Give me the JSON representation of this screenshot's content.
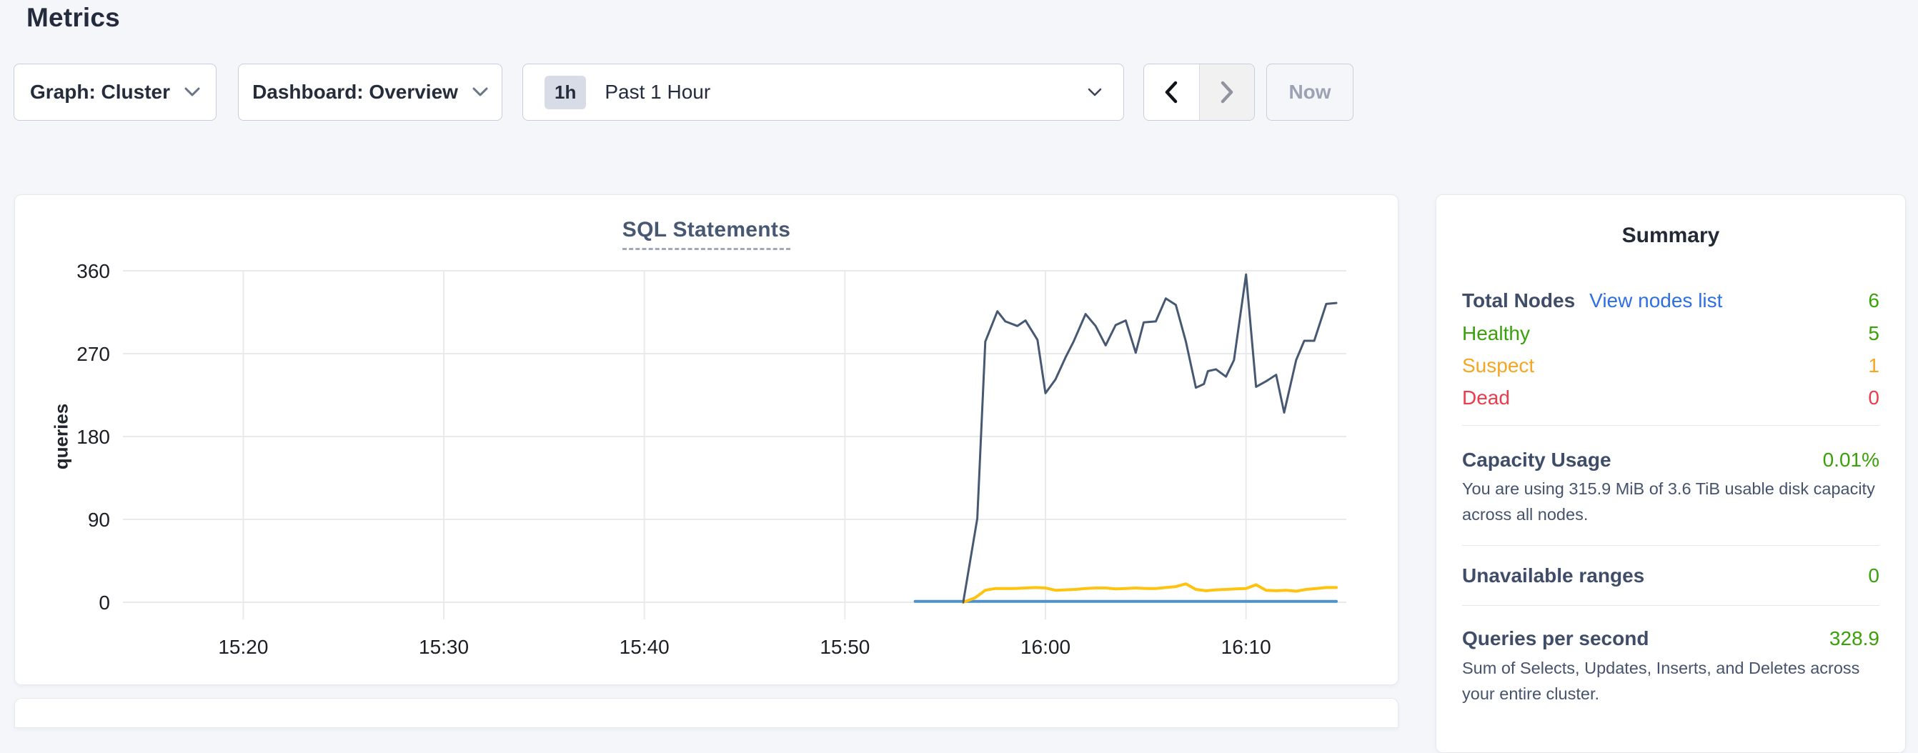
{
  "page": {
    "title": "Metrics"
  },
  "toolbar": {
    "graph_dropdown_label": "Graph: Cluster",
    "dashboard_dropdown_label": "Dashboard: Overview",
    "time_badge": "1h",
    "time_label": "Past 1 Hour",
    "now_label": "Now"
  },
  "chart_data": {
    "type": "line",
    "title": "SQL Statements",
    "ylabel": "queries",
    "xlabel": "",
    "grid": true,
    "legend_position": "none",
    "x_axis_unit": "minutes after 15:00",
    "x_domain": [
      14,
      75
    ],
    "y_domain": [
      0,
      360
    ],
    "y_ticks": [
      0,
      90,
      180,
      270,
      360
    ],
    "x_ticks": [
      {
        "m": 20,
        "label": "15:20"
      },
      {
        "m": 30,
        "label": "15:30"
      },
      {
        "m": 40,
        "label": "15:40"
      },
      {
        "m": 50,
        "label": "15:50"
      },
      {
        "m": 60,
        "label": "16:00"
      },
      {
        "m": 70,
        "label": "16:10"
      }
    ],
    "series": [
      {
        "name": "flat-baseline-series",
        "color": "#4e91cb",
        "width": 4,
        "points": [
          [
            53.5,
            1
          ],
          [
            74.5,
            1
          ]
        ]
      },
      {
        "name": "low-volume-series",
        "color": "#ffc20e",
        "width": 4,
        "points": [
          [
            55.9,
            0
          ],
          [
            56.5,
            5
          ],
          [
            57,
            13
          ],
          [
            57.5,
            15
          ],
          [
            58,
            15
          ],
          [
            58.5,
            15
          ],
          [
            59,
            15.5
          ],
          [
            59.5,
            16
          ],
          [
            60,
            15.5
          ],
          [
            60.5,
            13
          ],
          [
            61,
            13.5
          ],
          [
            61.5,
            14
          ],
          [
            62,
            15
          ],
          [
            62.5,
            15.5
          ],
          [
            63,
            15.5
          ],
          [
            63.5,
            14.5
          ],
          [
            64,
            15
          ],
          [
            64.5,
            15.5
          ],
          [
            65,
            15
          ],
          [
            65.5,
            15
          ],
          [
            66,
            16
          ],
          [
            66.5,
            17
          ],
          [
            67,
            20
          ],
          [
            67.5,
            14
          ],
          [
            68,
            12.5
          ],
          [
            68.5,
            13.5
          ],
          [
            69,
            14
          ],
          [
            69.5,
            14.5
          ],
          [
            70,
            15
          ],
          [
            70.5,
            19
          ],
          [
            71,
            13
          ],
          [
            71.5,
            12.5
          ],
          [
            72,
            13
          ],
          [
            72.5,
            12
          ],
          [
            73,
            14
          ],
          [
            73.5,
            15
          ],
          [
            74,
            16
          ],
          [
            74.5,
            16
          ]
        ]
      },
      {
        "name": "main-queries-series",
        "color": "#475872",
        "width": 3,
        "points": [
          [
            55.9,
            0
          ],
          [
            56.6,
            91
          ],
          [
            57,
            283
          ],
          [
            57.6,
            316
          ],
          [
            58,
            305
          ],
          [
            58.6,
            300
          ],
          [
            59,
            306
          ],
          [
            59.6,
            285
          ],
          [
            60,
            227
          ],
          [
            60.5,
            242
          ],
          [
            61,
            266
          ],
          [
            61.4,
            283
          ],
          [
            62,
            313
          ],
          [
            62.5,
            300
          ],
          [
            63,
            279
          ],
          [
            63.5,
            301
          ],
          [
            64,
            306
          ],
          [
            64.5,
            271
          ],
          [
            64.9,
            304
          ],
          [
            65.5,
            305
          ],
          [
            66,
            330
          ],
          [
            66.5,
            323
          ],
          [
            67,
            283
          ],
          [
            67.5,
            233
          ],
          [
            67.9,
            237
          ],
          [
            68.1,
            251
          ],
          [
            68.5,
            253
          ],
          [
            69,
            245
          ],
          [
            69.4,
            263
          ],
          [
            70,
            356
          ],
          [
            70.5,
            234
          ],
          [
            71,
            240
          ],
          [
            71.5,
            247
          ],
          [
            71.9,
            206
          ],
          [
            72.5,
            263
          ],
          [
            72.9,
            284
          ],
          [
            73.4,
            284
          ],
          [
            74,
            324
          ],
          [
            74.5,
            325
          ]
        ]
      }
    ]
  },
  "summary": {
    "title": "Summary",
    "total_row": {
      "label": "Total Nodes",
      "link": "View nodes list",
      "value": "6"
    },
    "status_rows": [
      {
        "label": "Healthy",
        "value": "5"
      },
      {
        "label": "Suspect",
        "value": "1"
      },
      {
        "label": "Dead",
        "value": "0"
      }
    ],
    "capacity": {
      "label": "Capacity Usage",
      "value": "0.01%",
      "description": "You are using 315.9 MiB of 3.6 TiB usable disk capacity across all nodes."
    },
    "unavailable": {
      "label": "Unavailable ranges",
      "value": "0"
    },
    "qps": {
      "label": "Queries per second",
      "value": "328.9",
      "description": "Sum of Selects, Updates, Inserts, and Deletes across your entire cluster."
    }
  },
  "colors": {
    "page_background": "#f4f6fa",
    "healthy_green": "#3aa10a",
    "suspect_orange": "#f5a623",
    "dead_red": "#ee3b4c",
    "link_blue": "#2f6fe4",
    "chart_main_line": "#475872",
    "chart_yellow_line": "#ffc20e",
    "chart_blue_line": "#4e91cb",
    "gridline": "#e9eaec"
  }
}
